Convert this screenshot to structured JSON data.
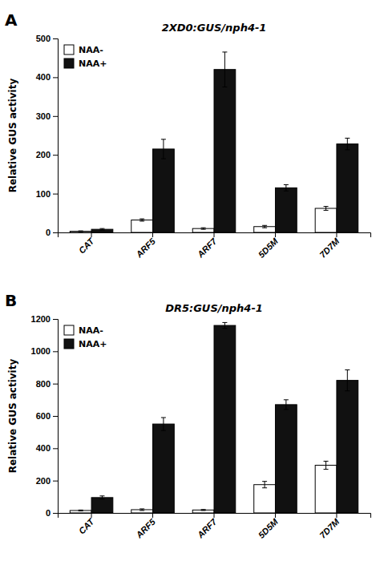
{
  "chart_data": [
    {
      "type": "bar",
      "title": "2XD0:GUS/nph4-1",
      "categories": [
        "CAT",
        "ARF5",
        "ARF7",
        "5D5M",
        "7D7M"
      ],
      "series": [
        {
          "name": "NAA-",
          "color": "#ffffff",
          "values": [
            3,
            32,
            10,
            15,
            62
          ],
          "errors": [
            1,
            3,
            2,
            3,
            5
          ]
        },
        {
          "name": "NAA+",
          "color": "#111111",
          "values": [
            8,
            215,
            420,
            115,
            228
          ],
          "errors": [
            2,
            25,
            45,
            8,
            15
          ]
        }
      ],
      "ylim": [
        0,
        500
      ],
      "yticks": [
        0,
        100,
        200,
        300,
        400,
        500
      ],
      "ylabel": "Relative GUS activity",
      "annotations": [
        "A"
      ],
      "legend": "upper left",
      "grid": false
    },
    {
      "type": "bar",
      "title": "DR5:GUS/nph4-1",
      "categories": [
        "CAT",
        "ARF5",
        "ARF7",
        "5D5M",
        "7D7M"
      ],
      "series": [
        {
          "name": "NAA-",
          "color": "#ffffff",
          "values": [
            15,
            20,
            18,
            175,
            295
          ],
          "errors": [
            3,
            5,
            3,
            20,
            25
          ]
        },
        {
          "name": "NAA+",
          "color": "#111111",
          "values": [
            95,
            550,
            1160,
            670,
            820
          ],
          "errors": [
            10,
            40,
            18,
            30,
            65
          ]
        }
      ],
      "ylim": [
        0,
        1200
      ],
      "yticks": [
        0,
        200,
        400,
        600,
        800,
        1000,
        1200
      ],
      "ylabel": "Relative GUS activity",
      "annotations": [
        "B"
      ],
      "legend": "upper left",
      "grid": false
    }
  ]
}
